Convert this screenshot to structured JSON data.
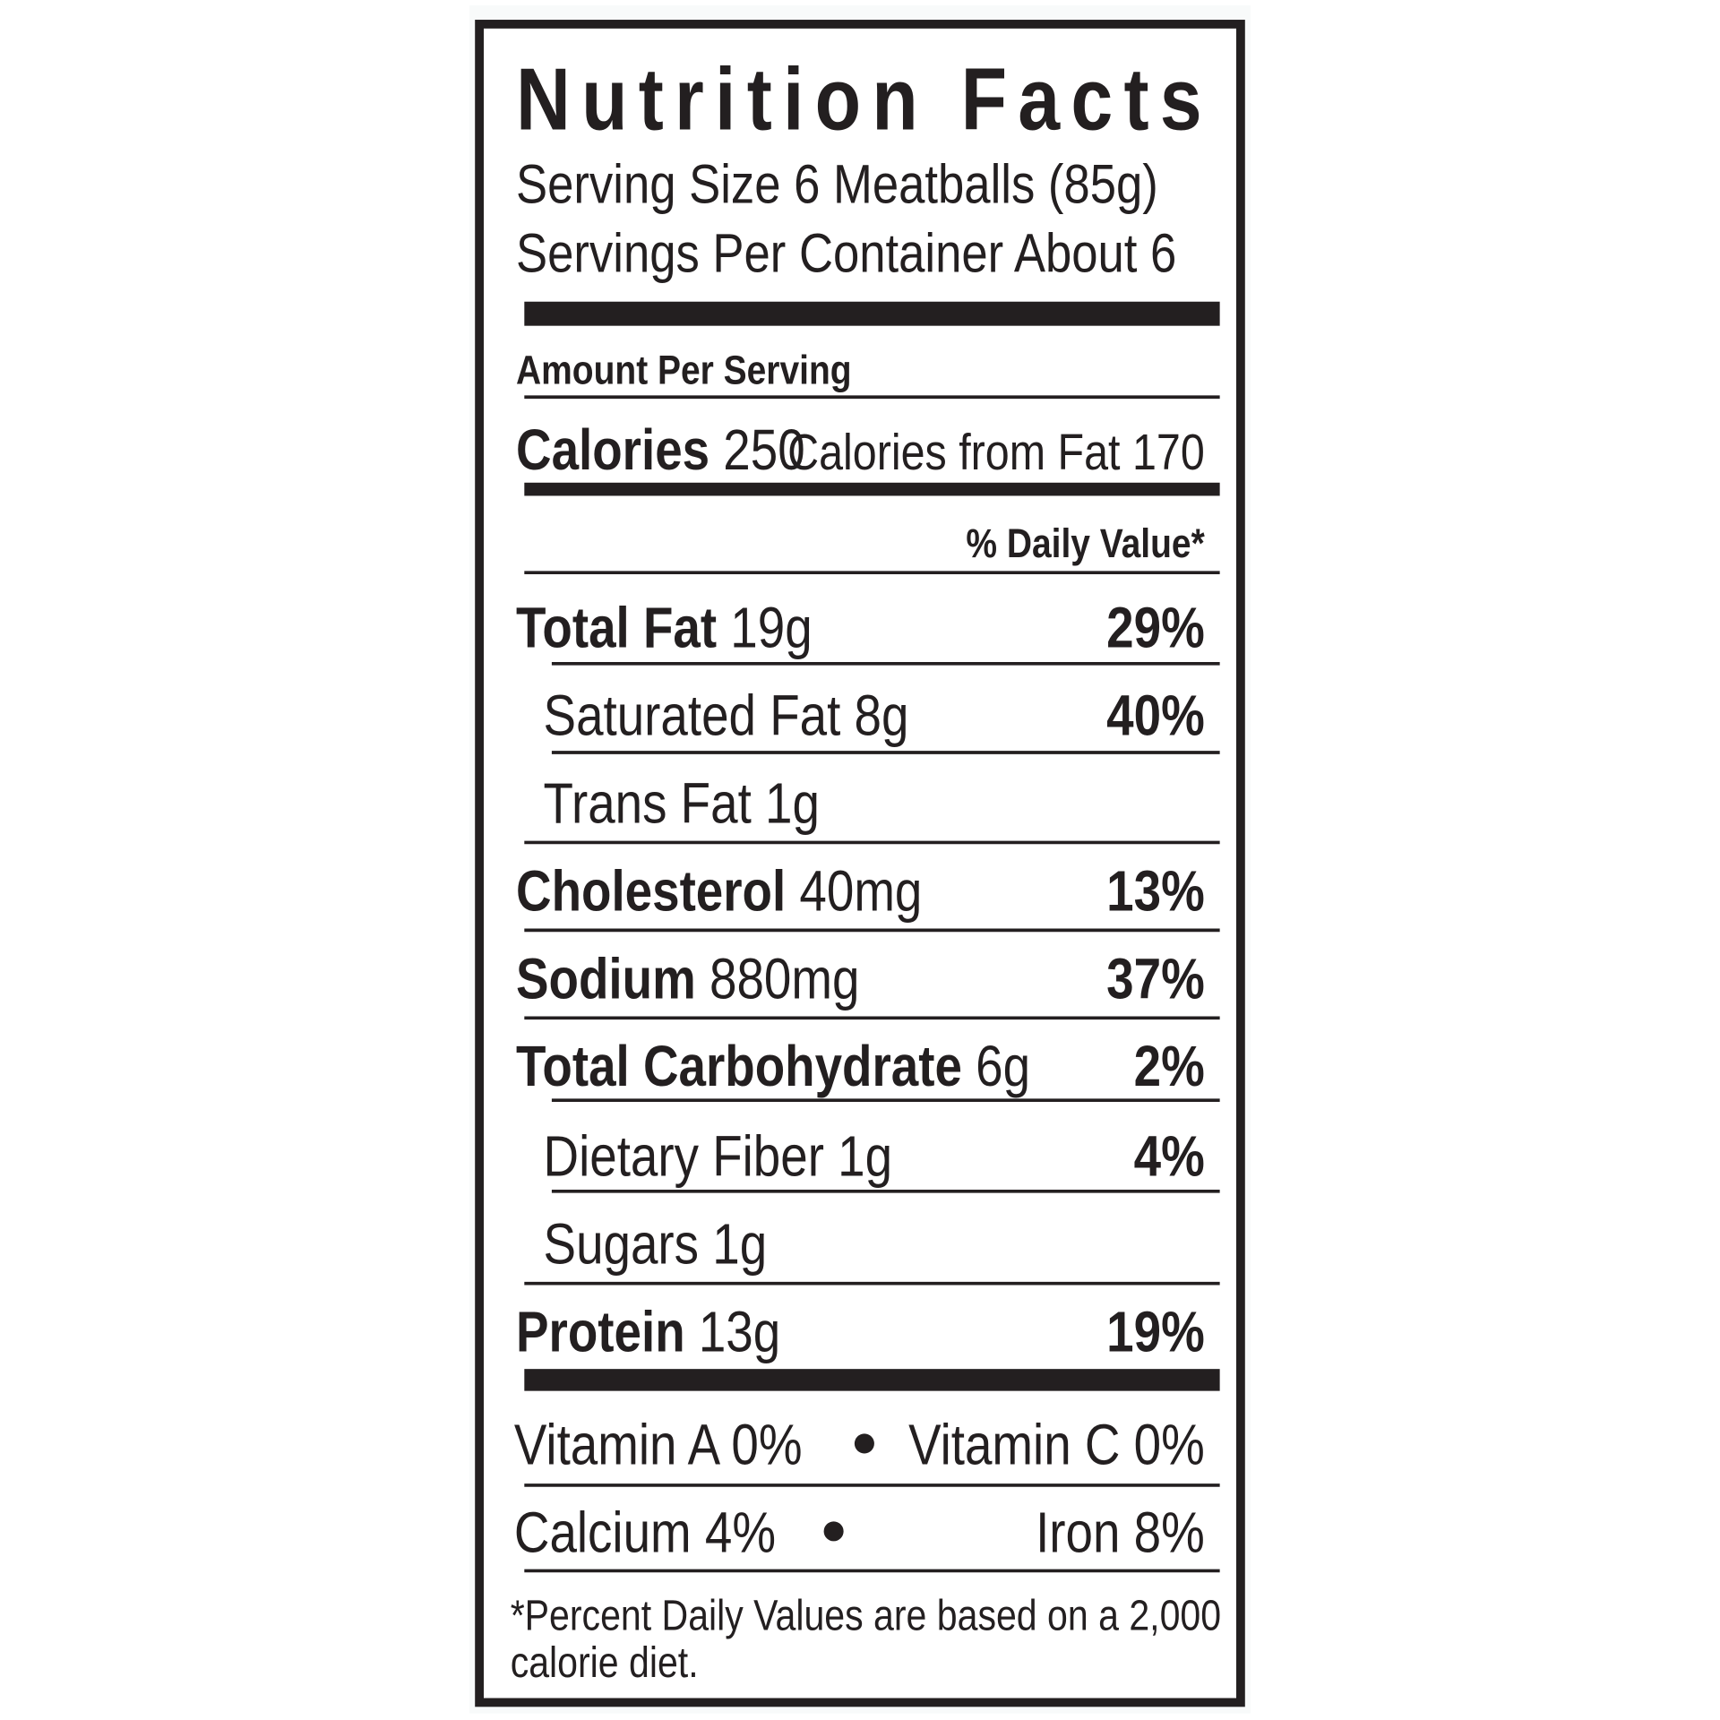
{
  "title": "Nutrition Facts",
  "serving_size": "Serving Size 6 Meatballs (85g)",
  "servings_per_container": "Servings Per Container About 6",
  "amount_per_serving": "Amount Per Serving",
  "calories": {
    "label": "Calories",
    "value": "250"
  },
  "calories_from_fat": "Calories from Fat 170",
  "daily_value_header": "% Daily Value*",
  "nutrients": [
    {
      "name": "Total Fat",
      "amount": "19g",
      "dv": "29%"
    },
    {
      "name": "Saturated Fat",
      "amount": "8g",
      "dv": "40%"
    },
    {
      "name": "Trans Fat",
      "amount": "1g"
    },
    {
      "name": "Cholesterol",
      "amount": "40mg",
      "dv": "13%"
    },
    {
      "name": "Sodium",
      "amount": "880mg",
      "dv": "37%"
    },
    {
      "name": "Total Carbohydrate",
      "amount": "6g",
      "dv": "2%"
    },
    {
      "name": "Dietary Fiber",
      "amount": "1g",
      "dv": "4%"
    },
    {
      "name": "Sugars",
      "amount": "1g"
    },
    {
      "name": "Protein",
      "amount": "13g",
      "dv": "19%"
    }
  ],
  "vitamins": [
    [
      "Vitamin A 0%",
      "Vitamin C 0%"
    ],
    [
      "Calcium 4%",
      "Iron 8%"
    ]
  ],
  "footnote": [
    "*Percent Daily Values are based on a 2,000",
    "calorie diet."
  ]
}
